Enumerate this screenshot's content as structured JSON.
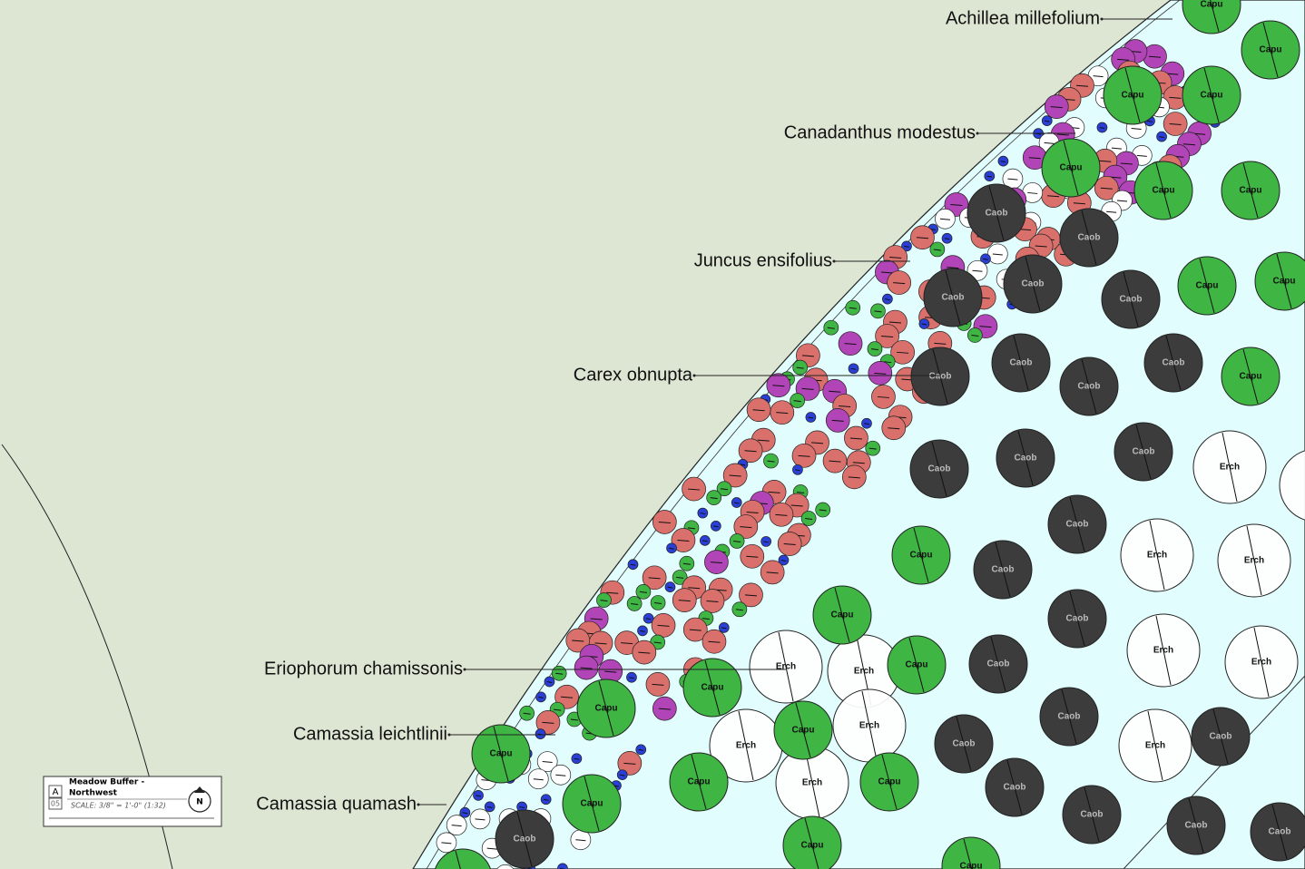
{
  "labels": [
    "Achillea millefolium",
    "Canadanthus modestus",
    "Juncus ensifolius",
    "Carex obnupta",
    "Eriophorum chamissonis",
    "Camassia leichtlinii",
    "Camassia quamash"
  ],
  "plant_codes": {
    "capu": "Capu",
    "caob": "Caob",
    "erch": "Erch"
  },
  "title_block": {
    "title_lines": [
      "Meadow Buffer -",
      "Northwest"
    ],
    "sheet_letter": "A",
    "sheet_number": "05",
    "scale": "SCALE: 3/8\" = 1'-0\" (1:32)",
    "north": "N"
  }
}
